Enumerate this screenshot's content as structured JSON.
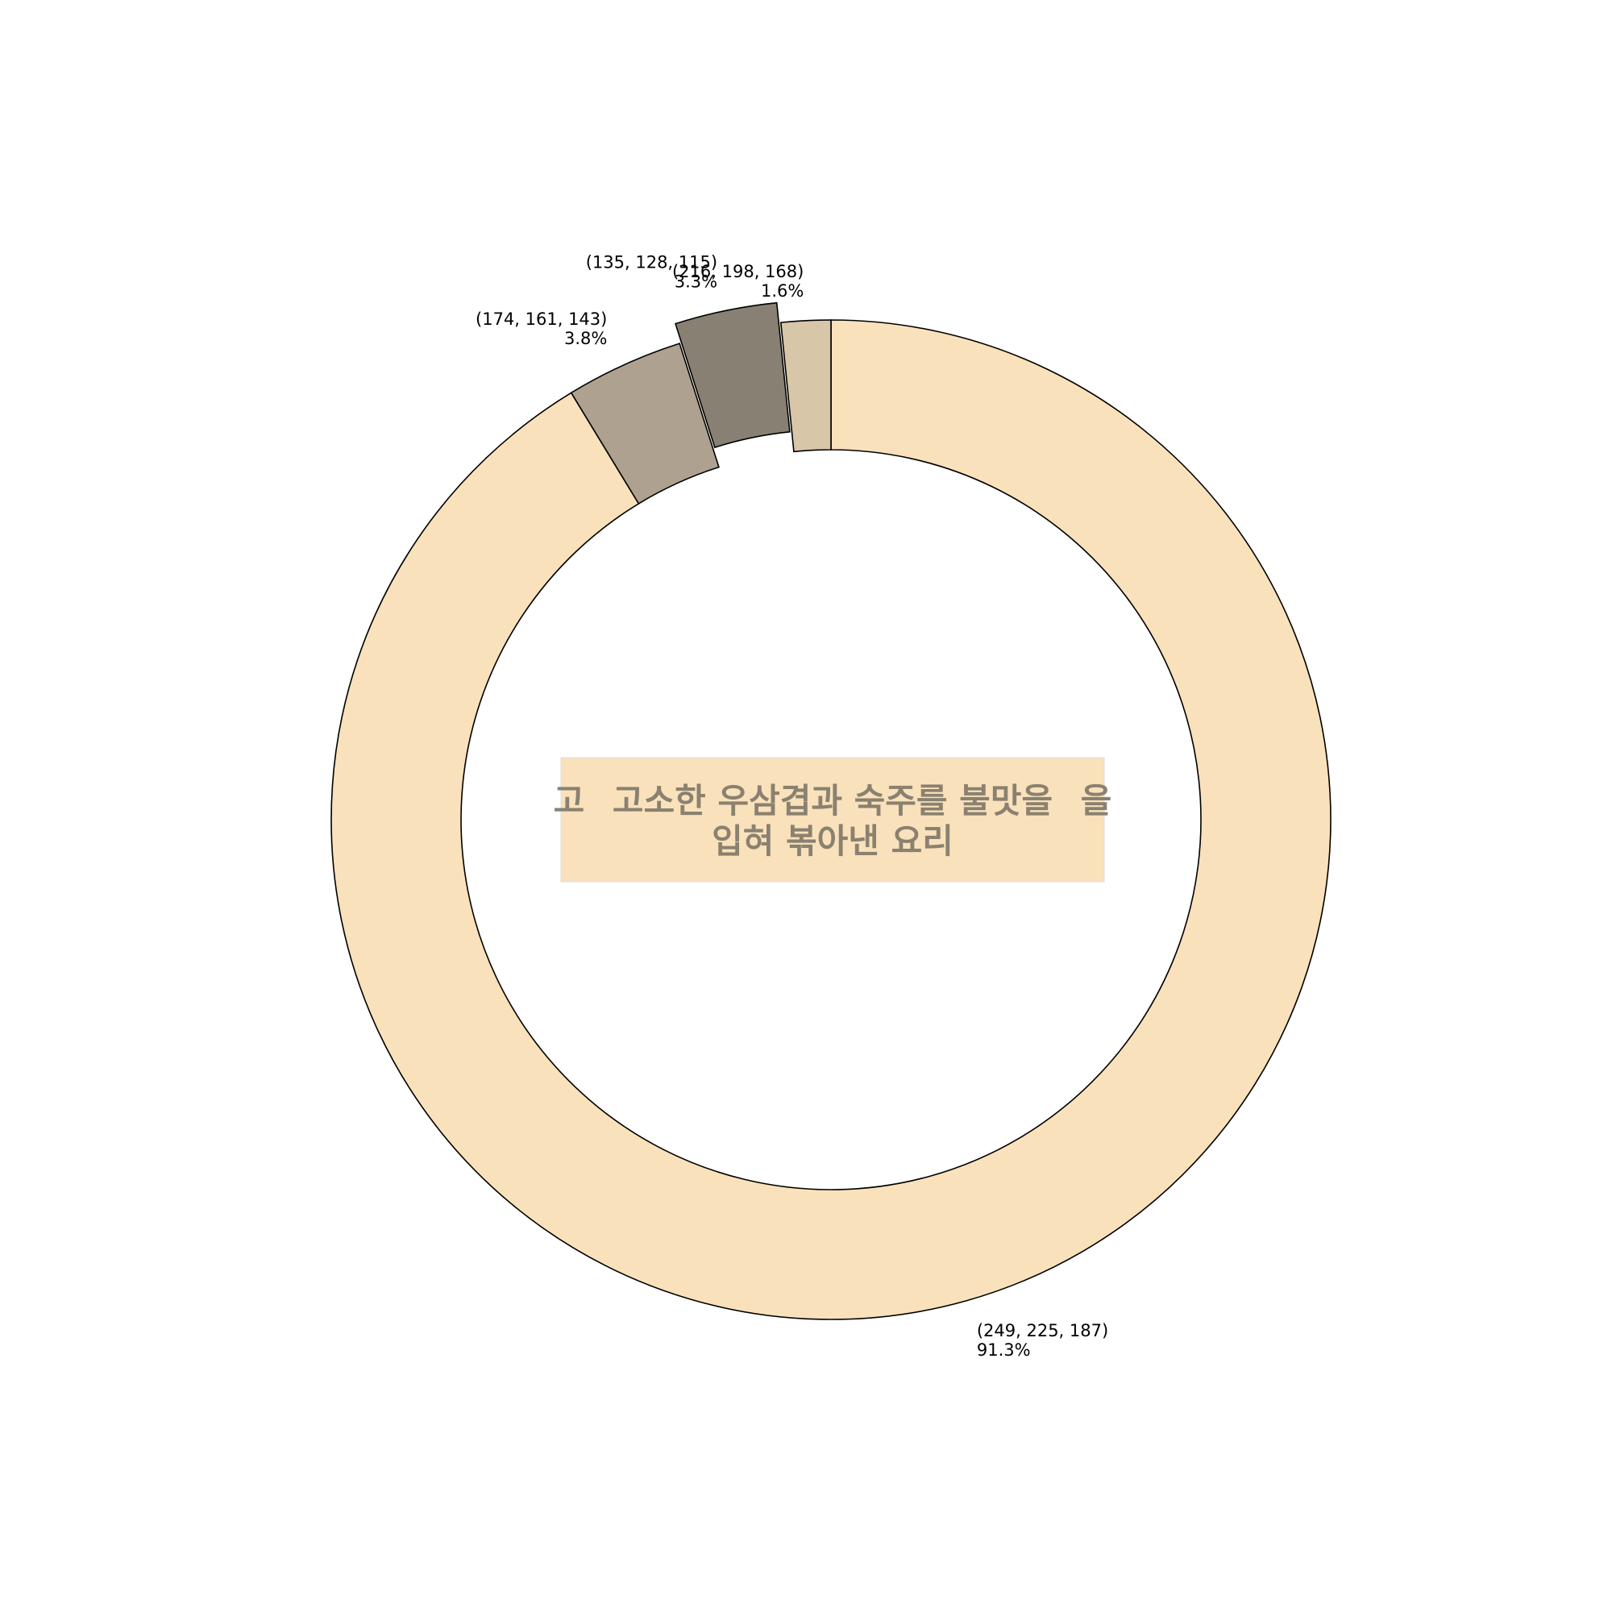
{
  "chart_data": {
    "type": "pie",
    "variant": "donut",
    "slices": [
      {
        "label": "(249, 225, 187)",
        "value": 91.3,
        "pct_label": "91.3%",
        "color": "#f9e1bb",
        "exploded": false
      },
      {
        "label": "(174, 161, 143)",
        "value": 3.8,
        "pct_label": "3.8%",
        "color": "#aea18f",
        "exploded": false
      },
      {
        "label": "(135, 128, 115)",
        "value": 3.3,
        "pct_label": "3.3%",
        "color": "#878073",
        "exploded": true
      },
      {
        "label": "(216, 198, 168)",
        "value": 1.6,
        "pct_label": "1.6%",
        "color": "#d8c6a8",
        "exploded": false
      }
    ],
    "start_angle": "top",
    "direction": "clockwise",
    "center_image": {
      "text_line1": "고소한 우삼겹과 숙주를 불맛을",
      "text_line2": "입혀 볶아낸 요리",
      "edge_left": "고",
      "edge_right": "을",
      "background": "#f9e1bb",
      "text_color": "#8a8170"
    }
  }
}
